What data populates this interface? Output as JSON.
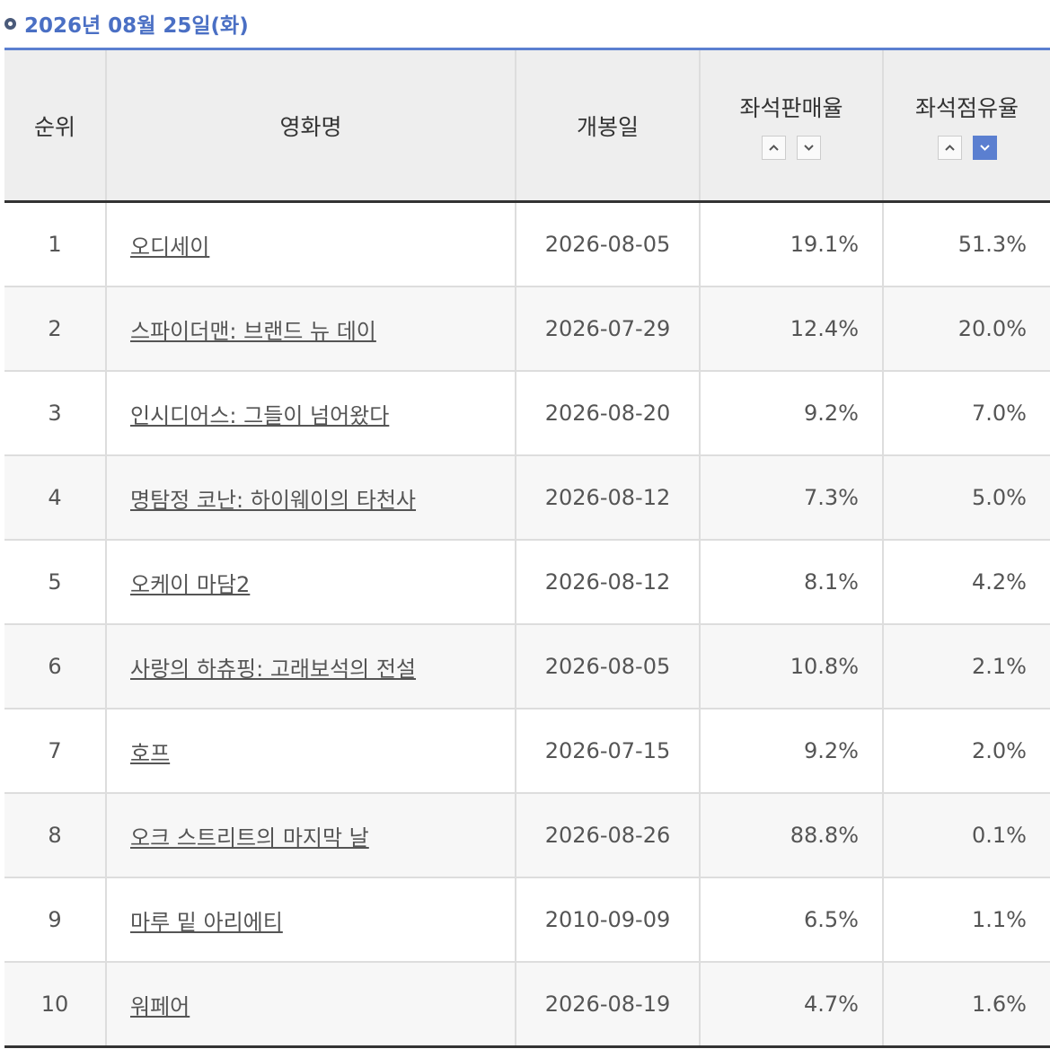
{
  "header": {
    "title": "2026년 08월 25일(화)"
  },
  "table": {
    "columns": [
      "순위",
      "영화명",
      "개봉일",
      "좌석판매율",
      "좌석점유율"
    ],
    "rows": [
      [
        "1",
        "오디세이",
        "2026-08-05",
        "19.1%",
        "51.3%"
      ],
      [
        "2",
        "스파이더맨: 브랜드 뉴 데이",
        "2026-07-29",
        "12.4%",
        "20.0%"
      ],
      [
        "3",
        "인시디어스: 그들이 넘어왔다",
        "2026-08-20",
        "9.2%",
        "7.0%"
      ],
      [
        "4",
        "명탐정 코난: 하이웨이의 타천사",
        "2026-08-12",
        "7.3%",
        "5.0%"
      ],
      [
        "5",
        "오케이 마담2",
        "2026-08-12",
        "8.1%",
        "4.2%"
      ],
      [
        "6",
        "사랑의 하츄핑: 고래보석의 전설",
        "2026-08-05",
        "10.8%",
        "2.1%"
      ],
      [
        "7",
        "호프",
        "2026-07-15",
        "9.2%",
        "2.0%"
      ],
      [
        "8",
        "오크 스트리트의 마지막 날",
        "2026-08-26",
        "88.8%",
        "0.1%"
      ],
      [
        "9",
        "마루 밑 아리에티",
        "2010-09-09",
        "6.5%",
        "1.1%"
      ],
      [
        "10",
        "워페어",
        "2026-08-19",
        "4.7%",
        "1.6%"
      ]
    ]
  }
}
